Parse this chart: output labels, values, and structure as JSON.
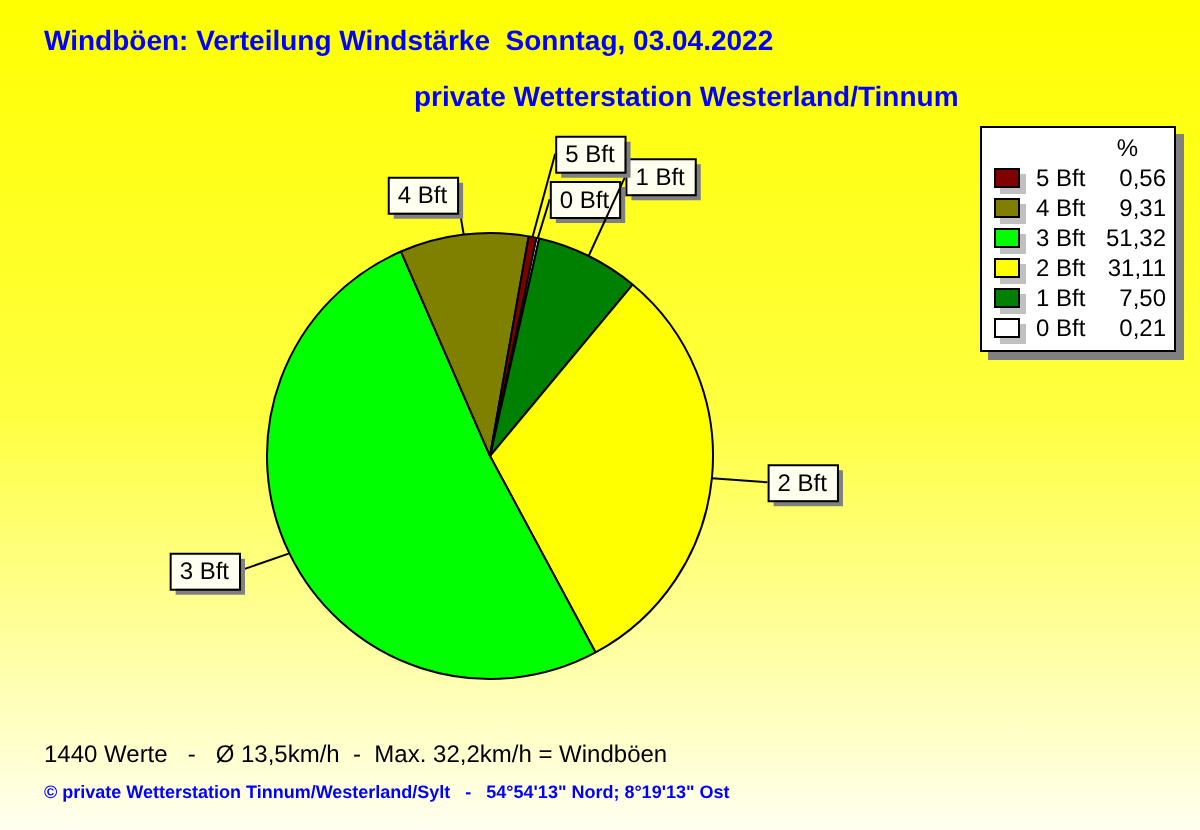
{
  "chart_data": {
    "type": "pie",
    "title": "Windböen: Verteilung Windstärke  Sonntag, 03.04.2022",
    "subtitle": "private Wetterstation Westerland/Tinnum",
    "categories": [
      "5 Bft",
      "4 Bft",
      "3 Bft",
      "2 Bft",
      "1 Bft",
      "0 Bft"
    ],
    "values": [
      0.56,
      9.31,
      51.32,
      31.11,
      7.5,
      0.21
    ],
    "colors": [
      "#800000",
      "#808000",
      "#00ff00",
      "#ffff00",
      "#008000",
      "#ffffff"
    ],
    "legend": "top right",
    "legend_title": "%",
    "value_labels": [
      "0,56",
      "9,31",
      "51,32",
      "31,11",
      "7,50",
      "0,21"
    ],
    "annotations": [
      "1440 Werte   -   Ø 13,5km/h  -  Max. 32,2km/h = Windböen",
      "© private Wetterstation Tinnum/Westerland/Sylt   -   54°54'13\" Nord; 8°19'13\" Ost"
    ]
  }
}
